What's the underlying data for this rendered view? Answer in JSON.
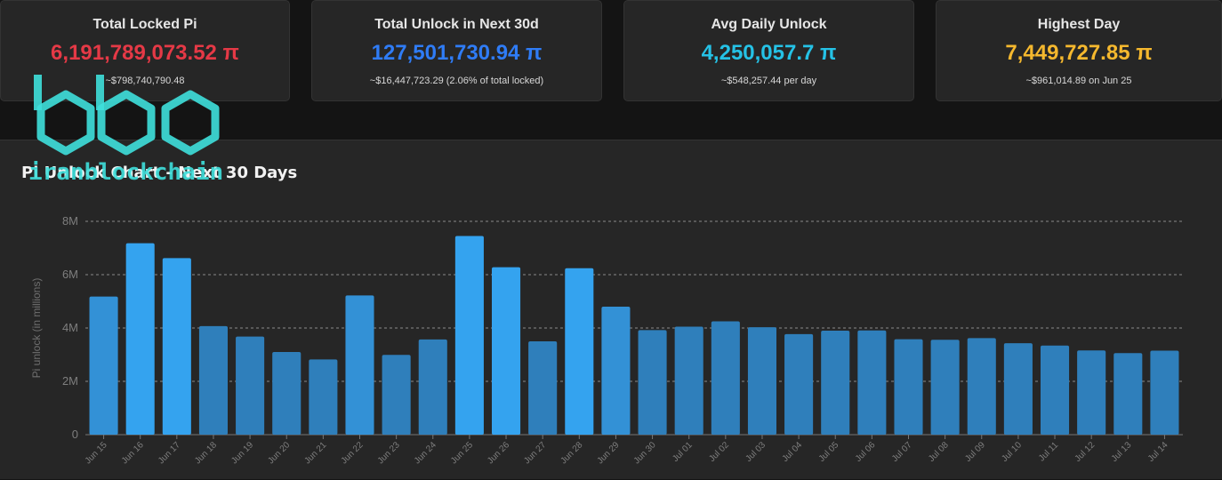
{
  "stats": [
    {
      "label": "Total Locked Pi",
      "value": "6,191,789,073.52 π",
      "sub": "~$798,740,790.48",
      "color": "#e53946"
    },
    {
      "label": "Total Unlock in Next 30d",
      "value": "127,501,730.94 π",
      "sub": "~$16,447,723.29 (2.06% of total locked)",
      "color": "#2f7cf6"
    },
    {
      "label": "Avg Daily Unlock",
      "value": "4,250,057.7 π",
      "sub": "~$548,257.44 per day",
      "color": "#25c2e6"
    },
    {
      "label": "Highest Day",
      "value": "7,449,727.85 π",
      "sub": "~$961,014.89 on Jun 25",
      "color": "#f5b82e"
    }
  ],
  "logo": {
    "text": "iranblockchain",
    "color": "#3fe0dc"
  },
  "chart_data": {
    "type": "bar",
    "title": "Pi Unlock Chart - Next 30 Days",
    "ylabel": "Pi unlock (in millions)",
    "xlabel": "",
    "ylim": [
      0,
      8000000
    ],
    "yticks": [
      0,
      2000000,
      4000000,
      6000000,
      8000000
    ],
    "ytick_labels": [
      "0",
      "2M",
      "4M",
      "6M",
      "8M"
    ],
    "grid": true,
    "categories": [
      "Jun 15",
      "Jun 16",
      "Jun 17",
      "Jun 18",
      "Jun 19",
      "Jun 20",
      "Jun 21",
      "Jun 22",
      "Jun 23",
      "Jun 24",
      "Jun 25",
      "Jun 26",
      "Jun 27",
      "Jun 28",
      "Jun 29",
      "Jun 30",
      "Jul 01",
      "Jul 02",
      "Jul 03",
      "Jul 04",
      "Jul 05",
      "Jul 06",
      "Jul 07",
      "Jul 08",
      "Jul 09",
      "Jul 10",
      "Jul 11",
      "Jul 12",
      "Jul 13",
      "Jul 14"
    ],
    "values": [
      5180000,
      7180000,
      6620000,
      4070000,
      3680000,
      3100000,
      2820000,
      5220000,
      2990000,
      3570000,
      7449727.85,
      6280000,
      3500000,
      6240000,
      4800000,
      3920000,
      4050000,
      4250000,
      4030000,
      3770000,
      3900000,
      3910000,
      3580000,
      3560000,
      3620000,
      3430000,
      3340000,
      3160000,
      3060000,
      3150000
    ],
    "colors": {
      "low": "#2f7fbb",
      "mid": "#3391d6",
      "high": "#34a3ef"
    }
  }
}
